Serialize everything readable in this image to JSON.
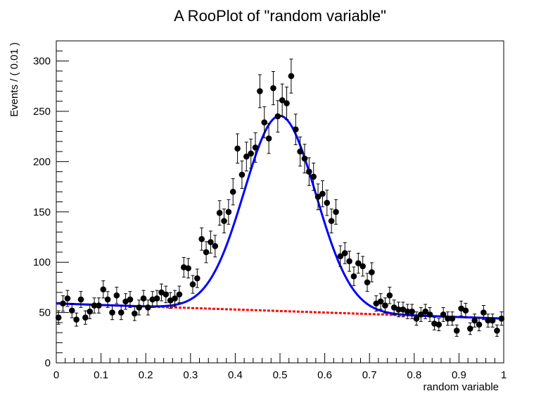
{
  "chart_data": {
    "type": "scatter",
    "title": "A RooPlot of \"random variable\"",
    "xlabel": "random variable",
    "ylabel": "Events / ( 0.01 )",
    "xlim": [
      0,
      1
    ],
    "ylim": [
      0,
      320
    ],
    "x_ticks": [
      0,
      0.1,
      0.2,
      0.3,
      0.4,
      0.5,
      0.6,
      0.7,
      0.8,
      0.9,
      1
    ],
    "x_tick_labels": [
      "0",
      "0.1",
      "0.2",
      "0.3",
      "0.4",
      "0.5",
      "0.6",
      "0.7",
      "0.8",
      "0.9",
      "1"
    ],
    "y_ticks": [
      0,
      50,
      100,
      150,
      200,
      250,
      300
    ],
    "y_tick_labels": [
      "0",
      "50",
      "100",
      "150",
      "200",
      "250",
      "300"
    ],
    "grid": false,
    "series": [
      {
        "kind": "data-points-with-errors",
        "color": "#000000",
        "bin_width": 0.01,
        "x_start": 0.005,
        "values": [
          45,
          59,
          64,
          52,
          43,
          63,
          45,
          51,
          57,
          57,
          73,
          63,
          50,
          67,
          50,
          61,
          63,
          49,
          55,
          64,
          55,
          63,
          64,
          70,
          68,
          62,
          64,
          68,
          95,
          94,
          78,
          84,
          123,
          110,
          120,
          116,
          149,
          141,
          150,
          170,
          213,
          187,
          205,
          208,
          214,
          270,
          239,
          223,
          273,
          245,
          261,
          258,
          285,
          232,
          210,
          203,
          190,
          185,
          165,
          168,
          159,
          141,
          150,
          106,
          109,
          101,
          86,
          99,
          96,
          80,
          90,
          59,
          61,
          57,
          67,
          55,
          53,
          53,
          51,
          51,
          44,
          48,
          51,
          48,
          39,
          38,
          48,
          44,
          44,
          32,
          54,
          52,
          34,
          42,
          38,
          50,
          42,
          42,
          32,
          44,
          44
        ],
        "errors": "sqrt"
      },
      {
        "kind": "fit-total",
        "color": "#0000ff",
        "model": "gaussian-plus-linear",
        "mean": 0.5,
        "sigma": 0.08,
        "peak": 194,
        "bkg_y0": 59,
        "bkg_y1": 44
      },
      {
        "kind": "fit-background",
        "color": "#ff0000",
        "style": "dashed",
        "y_at_0": 59,
        "y_at_1": 44
      }
    ]
  }
}
